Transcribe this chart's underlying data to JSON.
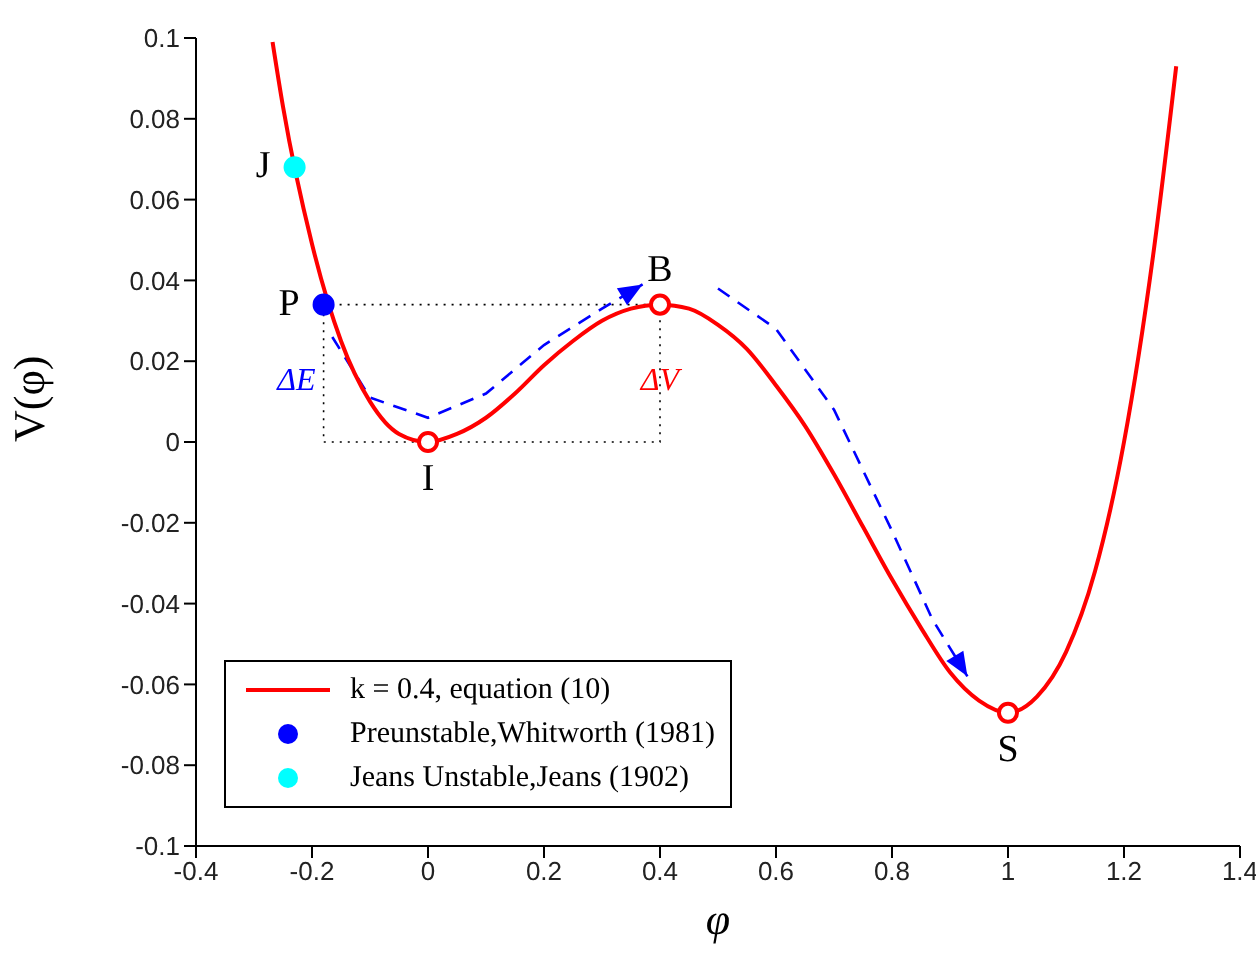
{
  "chart_data": {
    "type": "line",
    "xlabel": "φ",
    "ylabel": "V(φ)",
    "xlim": [
      -0.4,
      1.4
    ],
    "xticks": [
      -0.4,
      -0.2,
      0,
      0.2,
      0.4,
      0.6,
      0.8,
      1,
      1.2,
      1.4
    ],
    "ylim": [
      -0.1,
      0.1
    ],
    "yticks": [
      -0.1,
      -0.08,
      -0.06,
      -0.04,
      -0.02,
      0,
      0.02,
      0.04,
      0.06,
      0.08,
      0.1
    ],
    "grid": false,
    "legend": "bottom left",
    "line_style": "solid",
    "series": [
      {
        "name": "k = 0.4, equation (10)",
        "color": "#ff0000",
        "marker": "none",
        "x": [
          -0.268,
          -0.25,
          -0.2,
          -0.15,
          -0.1,
          -0.05,
          0,
          0.05,
          0.1,
          0.15,
          0.2,
          0.25,
          0.3,
          0.35,
          0.4,
          0.45,
          0.5,
          0.55,
          0.6,
          0.65,
          0.7,
          0.75,
          0.8,
          0.85,
          0.9,
          0.95,
          1,
          1.05,
          1.1,
          1.15,
          1.2,
          1.25,
          1.29
        ],
        "values": [
          0.099,
          0.083,
          0.049,
          0.025,
          0.01,
          0.002,
          0,
          0.002,
          0.006,
          0.012,
          0.019,
          0.025,
          0.03,
          0.033,
          0.034,
          0.033,
          0.029,
          0.023,
          0.014,
          0.004,
          -0.008,
          -0.021,
          -0.034,
          -0.046,
          -0.057,
          -0.064,
          -0.067,
          -0.063,
          -0.052,
          -0.032,
          0,
          0.046,
          0.093
        ]
      },
      {
        "color": "#ff0000",
        "type": "scatter",
        "marker": "circle",
        "x": [
          0,
          0.4,
          1
        ],
        "values": [
          0,
          0.034,
          -0.067
        ]
      },
      {
        "name": "Preunstable,Whitworth (1981)",
        "color": "#0000ff",
        "type": "scatter",
        "marker": "circle",
        "x": [
          -0.18
        ],
        "values": [
          0.034
        ]
      },
      {
        "name": "Jeans Unstable,Jeans (1902)",
        "color": "#00ffff",
        "type": "scatter",
        "marker": "circle",
        "x": [
          -0.23
        ],
        "values": [
          0.068
        ]
      }
    ],
    "annotations": [
      {
        "text": "J",
        "x": -0.23,
        "y": 0.068
      },
      {
        "text": "P",
        "x": -0.18,
        "y": 0.034
      },
      {
        "text": "I",
        "x": 0,
        "y": 0
      },
      {
        "text": "B",
        "x": 0.4,
        "y": 0.034
      },
      {
        "text": "S",
        "x": 1,
        "y": -0.067
      },
      "ΔE",
      "ΔV"
    ]
  }
}
